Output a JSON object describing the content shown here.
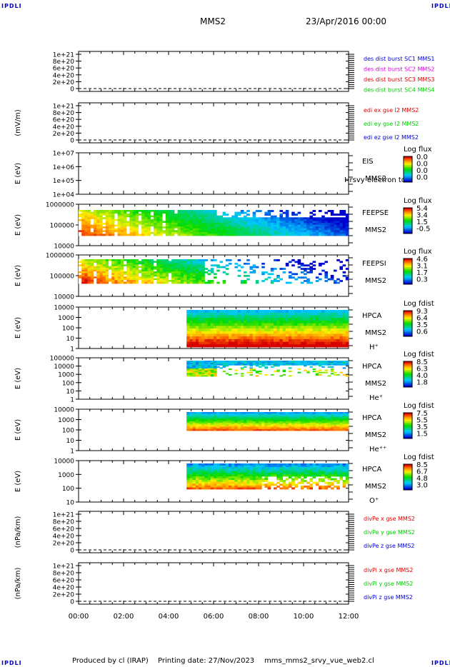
{
  "header": {
    "corner_label": "IPDLI",
    "title": "MMS2",
    "datetime": "23/Apr/2016 00:00"
  },
  "footer": {
    "produced_by": "Produced by cl (IRAP)",
    "printing_date": "Printing date: 27/Nov/2023",
    "filename": "mms_mms2_srvy_vue_web2.cl"
  },
  "colors": {
    "red": "#e00000",
    "green": "#00cc00",
    "blue": "#0000dd",
    "magenta": "#dd00dd"
  },
  "chart_data": [
    {
      "type": "line",
      "ylabel": "",
      "yticks": [
        "1e+21",
        "8e+20",
        "6e+20",
        "4e+20",
        "2e+20",
        "0"
      ],
      "legend": [
        {
          "text": "des dist burst SC1 MMS1",
          "color": "#0000dd"
        },
        {
          "text": "des dist burst SC2 MMS2",
          "color": "#dd00dd"
        },
        {
          "text": "des dist burst SC3 MMS3",
          "color": "#e00000"
        },
        {
          "text": "des dist burst SC4 MMS4",
          "color": "#00cc00"
        }
      ]
    },
    {
      "type": "line",
      "ylabel": "(mV/m)",
      "yticks": [
        "1e+21",
        "8e+20",
        "6e+20",
        "4e+20",
        "2e+20",
        "0"
      ],
      "legend": [
        {
          "text": "edi ex gse l2 MMS2",
          "color": "#e00000"
        },
        {
          "text": "edi ey gse l2 MMS2",
          "color": "#00cc00"
        },
        {
          "text": "edi ez gse l2 MMS2",
          "color": "#0000dd"
        }
      ]
    },
    {
      "type": "heatmap",
      "ylabel": "E (eV)",
      "yticks": [
        "1e+07",
        "1e+06",
        "1e+05",
        "1e+04"
      ],
      "labels": [
        "EIS",
        "MMS2"
      ],
      "extra_label": "Hrsvy electron to",
      "cbar": {
        "title": "Log flux",
        "ticks": [
          "0.0",
          "0.0",
          "0.0",
          "0.0"
        ]
      }
    },
    {
      "type": "heatmap",
      "ylabel": "E (eV)",
      "yticks": [
        "1000000",
        "100000",
        "10000"
      ],
      "labels": [
        "FEEPSE",
        "MMS2"
      ],
      "cbar": {
        "title": "Log flux",
        "ticks": [
          "5.4",
          "3.4",
          "1.5",
          "-0.5"
        ]
      }
    },
    {
      "type": "heatmap",
      "ylabel": "E (eV)",
      "yticks": [
        "1000000",
        "100000",
        "10000"
      ],
      "labels": [
        "FEEPSI",
        "MMS2"
      ],
      "cbar": {
        "title": "Log flux",
        "ticks": [
          "4.6",
          "3.1",
          "1.7",
          "0.3"
        ]
      }
    },
    {
      "type": "heatmap",
      "ylabel": "E (eV)",
      "yticks": [
        "10000",
        "1000",
        "100",
        "10",
        "1"
      ],
      "labels": [
        "HPCA",
        "MMS2",
        "H⁺"
      ],
      "cbar": {
        "title": "Log fdist",
        "ticks": [
          "9.3",
          "6.4",
          "3.5",
          "0.6"
        ]
      }
    },
    {
      "type": "heatmap",
      "ylabel": "E (eV)",
      "yticks": [
        "100000",
        "10000",
        "1000",
        "100",
        "10",
        "1"
      ],
      "labels": [
        "HPCA",
        "MMS2",
        "He⁺"
      ],
      "cbar": {
        "title": "Log fdist",
        "ticks": [
          "8.5",
          "6.3",
          "4.0",
          "1.8"
        ]
      }
    },
    {
      "type": "heatmap",
      "ylabel": "E (eV)",
      "yticks": [
        "10000",
        "1000",
        "100",
        "10",
        "1"
      ],
      "labels": [
        "HPCA",
        "MMS2",
        "He⁺⁺"
      ],
      "cbar": {
        "title": "Log fdist",
        "ticks": [
          "7.5",
          "5.5",
          "3.5",
          "1.5"
        ]
      }
    },
    {
      "type": "heatmap",
      "ylabel": "E (eV)",
      "yticks": [
        "10000",
        "1000",
        "100",
        "10"
      ],
      "labels": [
        "HPCA",
        "MMS2",
        "O⁺"
      ],
      "cbar": {
        "title": "Log fdist",
        "ticks": [
          "8.5",
          "6.7",
          "4.8",
          "3.0"
        ]
      }
    },
    {
      "type": "line",
      "ylabel": "(nPa/km)",
      "yticks": [
        "1e+21",
        "8e+20",
        "6e+20",
        "4e+20",
        "2e+20",
        "0"
      ],
      "legend": [
        {
          "text": "divPe x gse MMS2",
          "color": "#e00000"
        },
        {
          "text": "divPe y gse MMS2",
          "color": "#00cc00"
        },
        {
          "text": "divPe z gse MMS2",
          "color": "#0000dd"
        }
      ]
    },
    {
      "type": "line",
      "ylabel": "(nPa/km)",
      "yticks": [
        "1e+21",
        "8e+20",
        "6e+20",
        "4e+20",
        "2e+20",
        "0"
      ],
      "legend": [
        {
          "text": "divPi x gse MMS2",
          "color": "#e00000"
        },
        {
          "text": "divPi y gse MMS2",
          "color": "#00cc00"
        },
        {
          "text": "divPi z gse MMS2",
          "color": "#0000dd"
        }
      ]
    }
  ],
  "time_axis": {
    "ticks": [
      "00:00",
      "02:00",
      "04:00",
      "06:00",
      "08:00",
      "10:00",
      "12:00"
    ]
  }
}
